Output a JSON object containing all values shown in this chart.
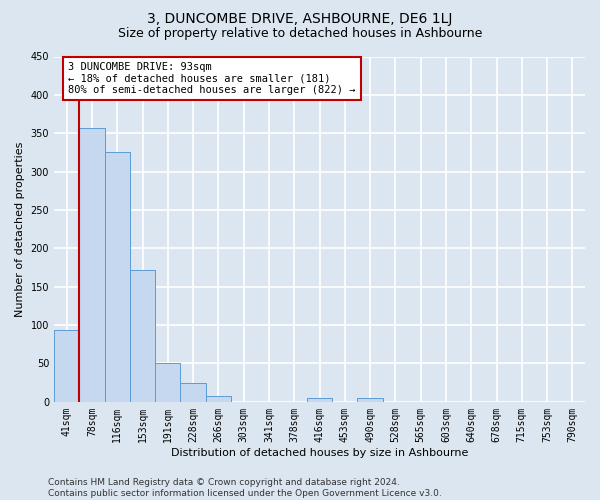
{
  "title": "3, DUNCOMBE DRIVE, ASHBOURNE, DE6 1LJ",
  "subtitle": "Size of property relative to detached houses in Ashbourne",
  "xlabel": "Distribution of detached houses by size in Ashbourne",
  "ylabel": "Number of detached properties",
  "bar_labels": [
    "41sqm",
    "78sqm",
    "116sqm",
    "153sqm",
    "191sqm",
    "228sqm",
    "266sqm",
    "303sqm",
    "341sqm",
    "378sqm",
    "416sqm",
    "453sqm",
    "490sqm",
    "528sqm",
    "565sqm",
    "603sqm",
    "640sqm",
    "678sqm",
    "715sqm",
    "753sqm",
    "790sqm"
  ],
  "bar_values": [
    93,
    357,
    325,
    172,
    51,
    25,
    8,
    0,
    0,
    0,
    5,
    0,
    5,
    0,
    0,
    0,
    0,
    0,
    0,
    0,
    0
  ],
  "bar_color": "#c5d8f0",
  "bar_edgecolor": "#5b9bd5",
  "vline_x": 0.5,
  "vline_color": "#c00000",
  "annotation_text": "3 DUNCOMBE DRIVE: 93sqm\n← 18% of detached houses are smaller (181)\n80% of semi-detached houses are larger (822) →",
  "annotation_box_color": "#ffffff",
  "annotation_box_edgecolor": "#c00000",
  "ylim": [
    0,
    450
  ],
  "yticks": [
    0,
    50,
    100,
    150,
    200,
    250,
    300,
    350,
    400,
    450
  ],
  "footer_text": "Contains HM Land Registry data © Crown copyright and database right 2024.\nContains public sector information licensed under the Open Government Licence v3.0.",
  "bg_color": "#dce6f0",
  "plot_bg_color": "#dce6f0",
  "grid_color": "#ffffff",
  "title_fontsize": 10,
  "subtitle_fontsize": 9,
  "label_fontsize": 8,
  "tick_fontsize": 7,
  "footer_fontsize": 6.5
}
